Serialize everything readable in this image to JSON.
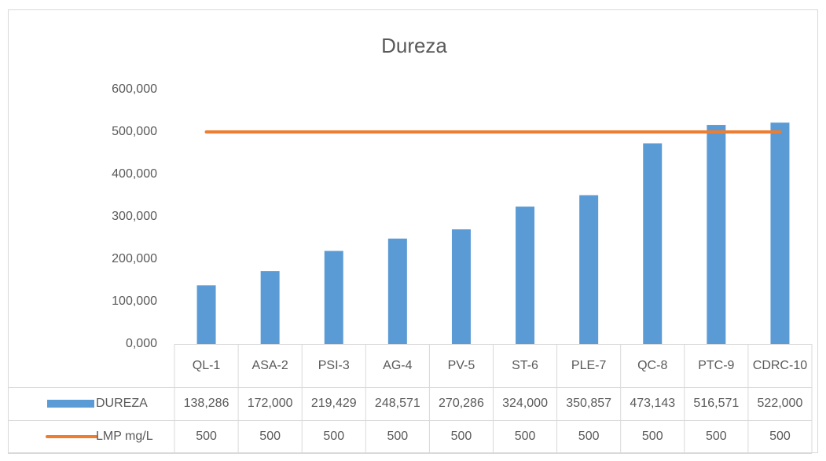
{
  "chart_data": {
    "type": "bar",
    "title": "Dureza",
    "categories": [
      "QL-1",
      "ASA-2",
      "PSI-3",
      "AG-4",
      "PV-5",
      "ST-6",
      "PLE-7",
      "QC-8",
      "PTC-9",
      "CDRC-10"
    ],
    "series": [
      {
        "name": "DUREZA",
        "type": "bar",
        "color": "#5b9bd5",
        "values": [
          138.286,
          172.0,
          219.429,
          248.571,
          270.286,
          324.0,
          350.857,
          473.143,
          516.571,
          522.0
        ],
        "value_labels": [
          "138,286",
          "172,000",
          "219,429",
          "248,571",
          "270,286",
          "324,000",
          "350,857",
          "473,143",
          "516,571",
          "522,000"
        ]
      },
      {
        "name": "LMP mg/L",
        "type": "line",
        "color": "#ed7d31",
        "values": [
          500,
          500,
          500,
          500,
          500,
          500,
          500,
          500,
          500,
          500
        ]
      }
    ],
    "ylim": [
      0,
      600
    ],
    "yticks": [
      {
        "value": 0,
        "label": "0,000"
      },
      {
        "value": 100,
        "label": "100,000"
      },
      {
        "value": 200,
        "label": "200,000"
      },
      {
        "value": 300,
        "label": "300,000"
      },
      {
        "value": 400,
        "label": "400,000"
      },
      {
        "value": 500,
        "label": "500,000"
      },
      {
        "value": 600,
        "label": "600,000"
      }
    ],
    "grid": false,
    "data_table": true
  }
}
